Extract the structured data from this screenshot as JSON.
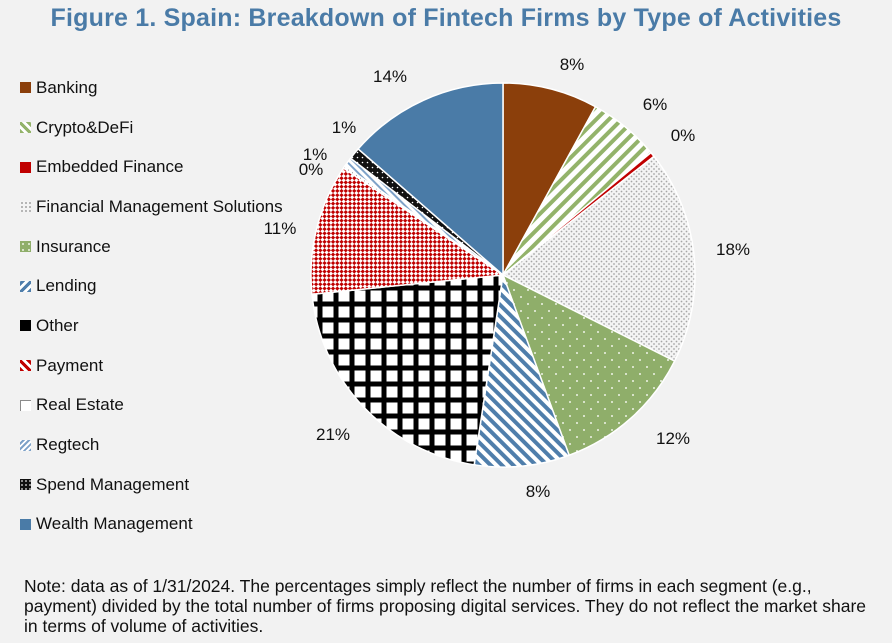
{
  "title": "Figure 1. Spain: Breakdown of Fintech Firms by Type of Activities",
  "note": "Note: data as of 1/31/2024. The percentages simply reflect the number of firms in each segment (e.g., payment) divided by the total number of firms proposing digital services. They do not reflect the market share in terms of volume of activities.",
  "chart_data": {
    "type": "pie",
    "title": "Figure 1. Spain: Breakdown of Fintech Firms by Type of Activities",
    "legend_position": "left",
    "slices": [
      {
        "label": "Banking",
        "value": 8,
        "value_label": "8%",
        "color": "#8b3f0b",
        "pattern": "solid"
      },
      {
        "label": "Crypto&DeFi",
        "value": 6,
        "value_label": "6%",
        "color": "#93b36a",
        "pattern": "diagonal-stripes"
      },
      {
        "label": "Embedded Finance",
        "value": 0.4,
        "value_label": "0%",
        "color": "#c00000",
        "pattern": "solid"
      },
      {
        "label": "Financial Management Solutions",
        "value": 18,
        "value_label": "18%",
        "color": "#bdbdbd",
        "pattern": "dots"
      },
      {
        "label": "Insurance",
        "value": 12,
        "value_label": "12%",
        "color": "#8fae6a",
        "pattern": "sparse-dots"
      },
      {
        "label": "Lending",
        "value": 8,
        "value_label": "8%",
        "color": "#4f7eab",
        "pattern": "diagonal-stripes"
      },
      {
        "label": "Other",
        "value": 21,
        "value_label": "21%",
        "color": "#000000",
        "pattern": "grid"
      },
      {
        "label": "Payment",
        "value": 11,
        "value_label": "11%",
        "color": "#c00000",
        "pattern": "checker"
      },
      {
        "label": "Real Estate",
        "value": 0.2,
        "value_label": "0%",
        "color": "#8b8b8b",
        "pattern": "outline"
      },
      {
        "label": "Regtech",
        "value": 0.8,
        "value_label": "",
        "color": "#7ea2c8",
        "pattern": "diagonal-stripes"
      },
      {
        "label": "Spend Management",
        "value": 1,
        "value_label": "1%",
        "color": "#111111",
        "pattern": "dots-dark"
      },
      {
        "label": "Wealth Management",
        "value": 13.6,
        "value_label": "14%",
        "color": "#4a7ba7",
        "pattern": "solid"
      }
    ],
    "extra_labels": [
      "1%"
    ]
  }
}
